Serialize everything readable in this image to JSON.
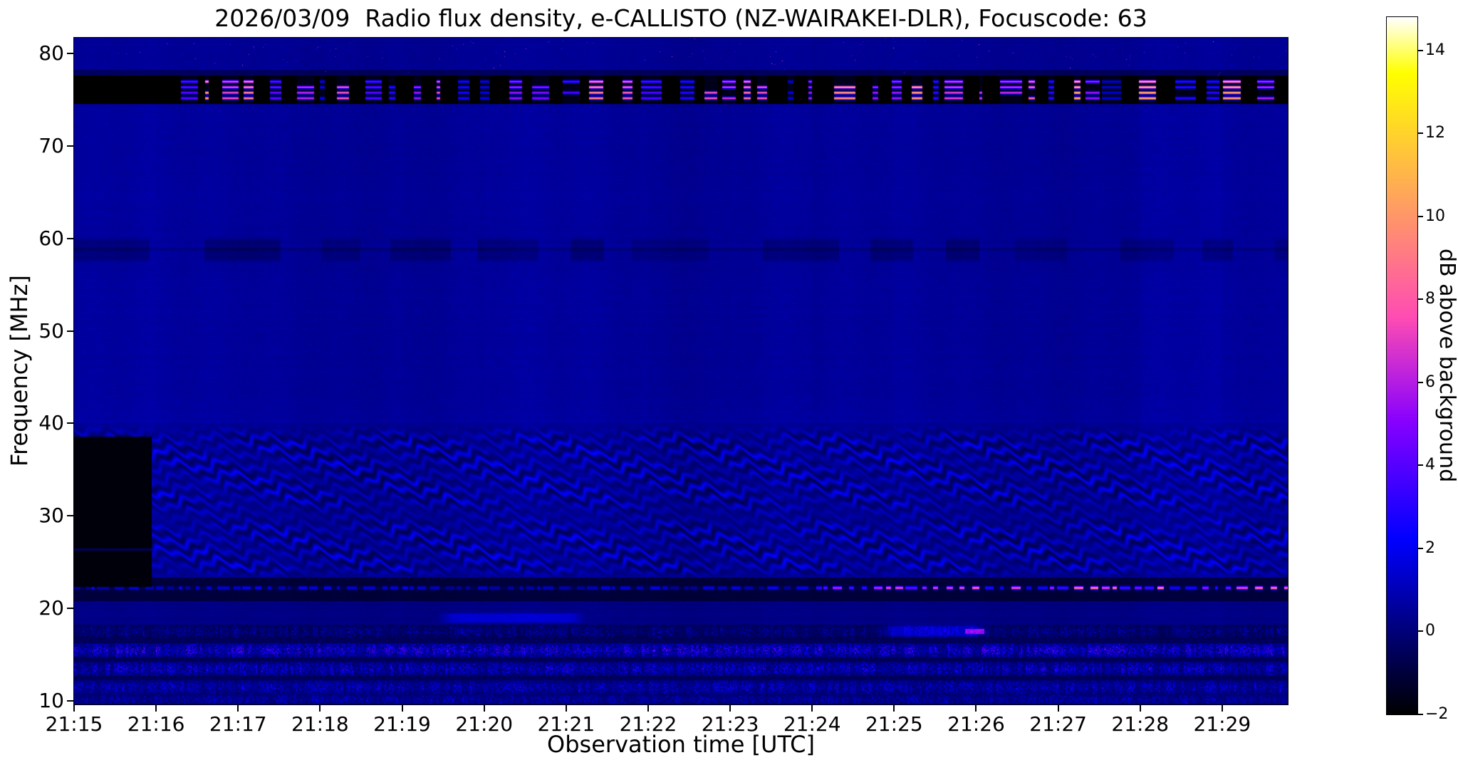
{
  "figure": {
    "title": "2026/03/09  Radio flux density, e-CALLISTO (NZ-WAIRAKEI-DLR), Focuscode: 63",
    "xlabel": "Observation time [UTC]",
    "ylabel": "Frequency [MHz]",
    "colorbar_label": "dB above background"
  },
  "chart_data": {
    "type": "heatmap",
    "title": "2026/03/09  Radio flux density, e-CALLISTO (NZ-WAIRAKEI-DLR), Focuscode: 63",
    "xlabel": "Observation time [UTC]",
    "ylabel": "Frequency [MHz]",
    "x_tick_labels": [
      "21:15",
      "21:16",
      "21:17",
      "21:18",
      "21:19",
      "21:20",
      "21:21",
      "21:22",
      "21:23",
      "21:24",
      "21:25",
      "21:26",
      "21:27",
      "21:28",
      "21:29"
    ],
    "x_tick_seconds": [
      0,
      60,
      120,
      180,
      240,
      300,
      360,
      420,
      480,
      540,
      600,
      660,
      720,
      780,
      840
    ],
    "x_range_seconds": [
      0,
      888
    ],
    "y_tick_labels": [
      "80",
      "70",
      "60",
      "50",
      "40",
      "30",
      "20",
      "10"
    ],
    "y_tick_values": [
      80,
      70,
      60,
      50,
      40,
      30,
      20,
      10
    ],
    "y_range_mhz": [
      9.6,
      81.7
    ],
    "grid": false,
    "colorbar": {
      "label": "dB above background",
      "tick_labels": [
        "14",
        "12",
        "10",
        "8",
        "6",
        "4",
        "2",
        "0",
        "−2"
      ],
      "tick_values": [
        14,
        12,
        10,
        8,
        6,
        4,
        2,
        0,
        -2
      ],
      "range": [
        -2,
        14.8
      ],
      "colormap": "gnuplot2"
    },
    "features": [
      {
        "kind": "rfi_band_black",
        "f": [
          74.55,
          77.65
        ],
        "t": [
          0,
          888
        ],
        "level": -2,
        "note": "black RFI channel band 75-77.5 MHz with intermittent bright bursts"
      },
      {
        "kind": "rfi_bursts",
        "lines": [
          75.15,
          75.75,
          76.35,
          76.95
        ],
        "level": [
          4,
          15
        ],
        "first_burst_s": 78
      },
      {
        "kind": "dark_patch_sequence",
        "f": [
          57.3,
          60.2
        ],
        "level": -0.5,
        "note": "recurring darker patches around 58-60 MHz"
      },
      {
        "kind": "dark_line",
        "f": 58.85,
        "level": -0.42
      },
      {
        "kind": "fringes",
        "f": [
          23.2,
          39.9
        ],
        "amplitude": 0.85,
        "spacing_mhz": 1.35,
        "undulation_s": 38,
        "note": "wavy ionospheric interference fringes 23-40 MHz"
      },
      {
        "kind": "black_rect",
        "t": [
          0,
          57
        ],
        "f": [
          22.3,
          38.6
        ],
        "level": -1.85,
        "note": "black rectangle at start of record 21:15-21:16"
      },
      {
        "kind": "line_22mhz",
        "f_center": 22.2,
        "dark_band": [
          20.8,
          23.3
        ],
        "bright_after_s": 540,
        "bright_level": [
          3,
          11
        ],
        "note": "narrow line at 22 MHz, bright orange dashes after 21:24"
      },
      {
        "kind": "speckle_band",
        "f": [
          16.7,
          18.2
        ],
        "base": -0.8,
        "max": 3.0
      },
      {
        "kind": "speckle_band",
        "f": [
          14.7,
          16.2
        ],
        "base": -0.45,
        "max": 6.2
      },
      {
        "kind": "speckle_band",
        "f": [
          12.7,
          14.2
        ],
        "base": -0.45,
        "max": 4.8
      },
      {
        "kind": "speckle_band",
        "f": [
          10.7,
          12.2
        ],
        "base": -0.35,
        "max": 3.8
      },
      {
        "kind": "speckle_band",
        "f": [
          9.6,
          10.65
        ],
        "base": -0.35,
        "max": 3.2
      },
      {
        "kind": "blob",
        "t": [
          265,
          375
        ],
        "f": [
          18.3,
          19.6
        ],
        "level": 1.4
      },
      {
        "kind": "blob",
        "t": [
          590,
          670
        ],
        "f": [
          16.8,
          18.3
        ],
        "level": 1.8
      },
      {
        "kind": "bright_dash",
        "t": [
          652,
          666
        ],
        "f": [
          17.25,
          17.8
        ],
        "level": 4.5
      }
    ]
  }
}
